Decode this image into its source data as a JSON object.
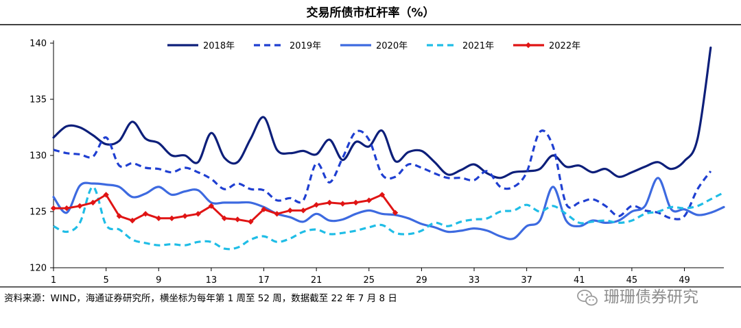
{
  "chart_data": {
    "type": "line",
    "title": "交易所债市杠杆率（%）",
    "xlabel": "",
    "ylabel": "",
    "xlim": [
      1,
      52
    ],
    "ylim": [
      120,
      140
    ],
    "yticks": [
      "120",
      "125",
      "130",
      "135",
      "140"
    ],
    "xticks": [
      "1",
      "5",
      "9",
      "13",
      "17",
      "21",
      "25",
      "29",
      "33",
      "37",
      "41",
      "45",
      "49"
    ],
    "legend_position": "top",
    "series": [
      {
        "name": "2018年",
        "color": "#0d1f7a",
        "style": "solid",
        "markers": false,
        "points": [
          [
            1,
            131.6
          ],
          [
            2,
            132.6
          ],
          [
            3,
            132.5
          ],
          [
            4,
            131.8
          ],
          [
            5,
            131.0
          ],
          [
            6,
            131.3
          ],
          [
            7,
            133.0
          ],
          [
            8,
            131.5
          ],
          [
            9,
            131.1
          ],
          [
            10,
            130.0
          ],
          [
            11,
            130.0
          ],
          [
            12,
            129.4
          ],
          [
            13,
            132.0
          ],
          [
            14,
            129.8
          ],
          [
            15,
            129.4
          ],
          [
            16,
            131.5
          ],
          [
            17,
            133.4
          ],
          [
            18,
            130.5
          ],
          [
            19,
            130.2
          ],
          [
            20,
            130.4
          ],
          [
            21,
            130.1
          ],
          [
            22,
            131.4
          ],
          [
            23,
            129.6
          ],
          [
            24,
            131.2
          ],
          [
            25,
            130.8
          ],
          [
            26,
            132.2
          ],
          [
            27,
            129.5
          ],
          [
            28,
            130.3
          ],
          [
            29,
            130.4
          ],
          [
            30,
            129.4
          ],
          [
            31,
            128.3
          ],
          [
            32,
            128.7
          ],
          [
            33,
            129.2
          ],
          [
            34,
            128.4
          ],
          [
            35,
            128.0
          ],
          [
            36,
            128.5
          ],
          [
            37,
            128.6
          ],
          [
            38,
            128.8
          ],
          [
            39,
            130.0
          ],
          [
            40,
            129.0
          ],
          [
            41,
            129.1
          ],
          [
            42,
            128.5
          ],
          [
            43,
            128.8
          ],
          [
            44,
            128.1
          ],
          [
            45,
            128.5
          ],
          [
            46,
            129.0
          ],
          [
            47,
            129.4
          ],
          [
            48,
            128.8
          ],
          [
            49,
            129.5
          ],
          [
            50,
            131.5
          ],
          [
            51,
            139.6
          ]
        ]
      },
      {
        "name": "2019年",
        "color": "#1f3fd1",
        "style": "dashed",
        "markers": false,
        "points": [
          [
            1,
            130.5
          ],
          [
            2,
            130.2
          ],
          [
            3,
            130.1
          ],
          [
            4,
            129.9
          ],
          [
            5,
            131.6
          ],
          [
            6,
            129.1
          ],
          [
            7,
            129.3
          ],
          [
            8,
            128.9
          ],
          [
            9,
            128.8
          ],
          [
            10,
            128.5
          ],
          [
            11,
            128.9
          ],
          [
            12,
            128.5
          ],
          [
            13,
            127.9
          ],
          [
            14,
            127.0
          ],
          [
            15,
            127.5
          ],
          [
            16,
            127.0
          ],
          [
            17,
            126.9
          ],
          [
            18,
            126.0
          ],
          [
            19,
            126.2
          ],
          [
            20,
            126.0
          ],
          [
            21,
            129.3
          ],
          [
            22,
            127.6
          ],
          [
            23,
            129.8
          ],
          [
            24,
            132.1
          ],
          [
            25,
            131.4
          ],
          [
            26,
            128.3
          ],
          [
            27,
            128.1
          ],
          [
            28,
            129.2
          ],
          [
            29,
            128.9
          ],
          [
            30,
            128.4
          ],
          [
            31,
            128.0
          ],
          [
            32,
            128.0
          ],
          [
            33,
            127.8
          ],
          [
            34,
            128.6
          ],
          [
            35,
            127.2
          ],
          [
            36,
            127.2
          ],
          [
            37,
            128.5
          ],
          [
            38,
            132.1
          ],
          [
            39,
            130.8
          ],
          [
            40,
            125.7
          ],
          [
            41,
            125.8
          ],
          [
            42,
            126.1
          ],
          [
            43,
            125.5
          ],
          [
            44,
            124.6
          ],
          [
            45,
            125.5
          ],
          [
            46,
            125.1
          ],
          [
            47,
            124.9
          ],
          [
            48,
            124.4
          ],
          [
            49,
            124.6
          ],
          [
            50,
            127.0
          ],
          [
            51,
            128.6
          ]
        ]
      },
      {
        "name": "2020年",
        "color": "#3d6ae0",
        "style": "solid",
        "markers": false,
        "points": [
          [
            1,
            126.3
          ],
          [
            2,
            124.9
          ],
          [
            3,
            127.3
          ],
          [
            4,
            127.5
          ],
          [
            5,
            127.4
          ],
          [
            6,
            127.2
          ],
          [
            7,
            126.3
          ],
          [
            8,
            126.6
          ],
          [
            9,
            127.2
          ],
          [
            10,
            126.5
          ],
          [
            11,
            126.8
          ],
          [
            12,
            126.9
          ],
          [
            13,
            125.8
          ],
          [
            14,
            125.8
          ],
          [
            15,
            125.8
          ],
          [
            16,
            125.8
          ],
          [
            17,
            125.4
          ],
          [
            18,
            124.8
          ],
          [
            19,
            124.5
          ],
          [
            20,
            124.1
          ],
          [
            21,
            124.8
          ],
          [
            22,
            124.2
          ],
          [
            23,
            124.3
          ],
          [
            24,
            124.8
          ],
          [
            25,
            125.1
          ],
          [
            26,
            124.8
          ],
          [
            27,
            124.7
          ],
          [
            28,
            124.4
          ],
          [
            29,
            123.9
          ],
          [
            30,
            123.6
          ],
          [
            31,
            123.2
          ],
          [
            32,
            123.3
          ],
          [
            33,
            123.5
          ],
          [
            34,
            123.3
          ],
          [
            35,
            122.8
          ],
          [
            36,
            122.6
          ],
          [
            37,
            123.7
          ],
          [
            38,
            124.2
          ],
          [
            39,
            127.2
          ],
          [
            40,
            124.2
          ],
          [
            41,
            123.7
          ],
          [
            42,
            124.2
          ],
          [
            43,
            124.0
          ],
          [
            44,
            124.2
          ],
          [
            45,
            125.0
          ],
          [
            46,
            125.5
          ],
          [
            47,
            128.0
          ],
          [
            48,
            125.2
          ],
          [
            49,
            125.2
          ],
          [
            50,
            124.7
          ],
          [
            51,
            124.9
          ],
          [
            52,
            125.4
          ]
        ]
      },
      {
        "name": "2021年",
        "color": "#1fbde6",
        "style": "dashed",
        "markers": false,
        "points": [
          [
            1,
            123.7
          ],
          [
            2,
            123.2
          ],
          [
            3,
            124.0
          ],
          [
            4,
            127.2
          ],
          [
            5,
            123.8
          ],
          [
            6,
            123.4
          ],
          [
            7,
            122.5
          ],
          [
            8,
            122.2
          ],
          [
            9,
            122.0
          ],
          [
            10,
            122.1
          ],
          [
            11,
            122.0
          ],
          [
            12,
            122.3
          ],
          [
            13,
            122.3
          ],
          [
            14,
            121.7
          ],
          [
            15,
            121.8
          ],
          [
            16,
            122.5
          ],
          [
            17,
            122.8
          ],
          [
            18,
            122.3
          ],
          [
            19,
            122.6
          ],
          [
            20,
            123.2
          ],
          [
            21,
            123.4
          ],
          [
            22,
            123.0
          ],
          [
            23,
            123.1
          ],
          [
            24,
            123.3
          ],
          [
            25,
            123.6
          ],
          [
            26,
            123.8
          ],
          [
            27,
            123.1
          ],
          [
            28,
            123.0
          ],
          [
            29,
            123.3
          ],
          [
            30,
            124.0
          ],
          [
            31,
            123.7
          ],
          [
            32,
            124.1
          ],
          [
            33,
            124.3
          ],
          [
            34,
            124.4
          ],
          [
            35,
            125.0
          ],
          [
            36,
            125.1
          ],
          [
            37,
            125.6
          ],
          [
            38,
            125.0
          ],
          [
            39,
            125.5
          ],
          [
            40,
            124.8
          ],
          [
            41,
            124.0
          ],
          [
            42,
            124.1
          ],
          [
            43,
            124.2
          ],
          [
            44,
            124.0
          ],
          [
            45,
            124.2
          ],
          [
            46,
            124.8
          ],
          [
            47,
            125.0
          ],
          [
            48,
            125.4
          ],
          [
            49,
            125.3
          ],
          [
            50,
            125.5
          ],
          [
            51,
            126.1
          ],
          [
            52,
            126.7
          ]
        ]
      },
      {
        "name": "2022年",
        "color": "#e01414",
        "style": "solid",
        "markers": true,
        "points": [
          [
            1,
            125.3
          ],
          [
            2,
            125.3
          ],
          [
            3,
            125.5
          ],
          [
            4,
            125.8
          ],
          [
            5,
            126.5
          ],
          [
            6,
            124.6
          ],
          [
            7,
            124.2
          ],
          [
            8,
            124.8
          ],
          [
            9,
            124.4
          ],
          [
            10,
            124.4
          ],
          [
            11,
            124.6
          ],
          [
            12,
            124.8
          ],
          [
            13,
            125.5
          ],
          [
            14,
            124.4
          ],
          [
            15,
            124.3
          ],
          [
            16,
            124.1
          ],
          [
            17,
            125.2
          ],
          [
            18,
            124.8
          ],
          [
            19,
            125.1
          ],
          [
            20,
            125.1
          ],
          [
            21,
            125.6
          ],
          [
            22,
            125.8
          ],
          [
            23,
            125.7
          ],
          [
            24,
            125.8
          ],
          [
            25,
            126.0
          ],
          [
            26,
            126.5
          ],
          [
            27,
            124.9
          ]
        ]
      }
    ]
  },
  "footer": {
    "source": "资料来源：WIND，海通证券研究所，横坐标为每年第 1 周至 52 周，数据截至 22 年 7 月 8 日",
    "watermark": "珊珊债券研究"
  }
}
